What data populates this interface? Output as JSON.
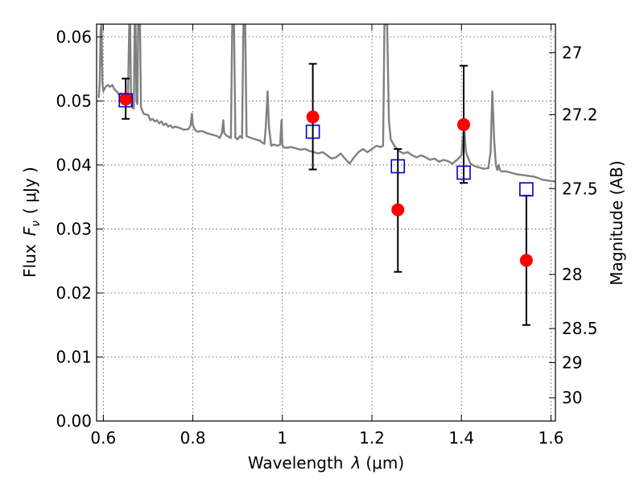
{
  "chart_data": {
    "type": "scatter",
    "title": "",
    "xlabel_prefix": "Wavelength",
    "xlabel_symbol": "λ",
    "xlabel_unit": "(μm)",
    "ylabel_prefix": "Flux",
    "ylabel_symbol": "F",
    "ylabel_subscript": "ν",
    "ylabel_unit": "( μJy )",
    "y2label": "Magnitude (AB)",
    "xlim": [
      0.585,
      1.61
    ],
    "ylim": [
      0.0,
      0.062
    ],
    "grid": true,
    "xticks": [
      {
        "value": 0.6,
        "label": "0.6"
      },
      {
        "value": 0.8,
        "label": "0.8"
      },
      {
        "value": 1.0,
        "label": "1"
      },
      {
        "value": 1.2,
        "label": "1.2"
      },
      {
        "value": 1.4,
        "label": "1.4"
      },
      {
        "value": 1.6,
        "label": "1.6"
      }
    ],
    "yticks": [
      {
        "value": 0.0,
        "label": "0.00"
      },
      {
        "value": 0.01,
        "label": "0.01"
      },
      {
        "value": 0.02,
        "label": "0.02"
      },
      {
        "value": 0.03,
        "label": "0.03"
      },
      {
        "value": 0.04,
        "label": "0.04"
      },
      {
        "value": 0.05,
        "label": "0.05"
      },
      {
        "value": 0.06,
        "label": "0.06"
      }
    ],
    "y2ticks": [
      {
        "mag": 27.0,
        "label": "27"
      },
      {
        "mag": 27.2,
        "label": "27.2"
      },
      {
        "mag": 27.5,
        "label": "27.5"
      },
      {
        "mag": 28.0,
        "label": "28"
      },
      {
        "mag": 28.5,
        "label": "28.5"
      },
      {
        "mag": 29.0,
        "label": "29"
      },
      {
        "mag": 30.0,
        "label": "30"
      }
    ],
    "series": [
      {
        "kind": "line",
        "color": "#808080",
        "points": [
          [
            0.59,
            0.0505
          ],
          [
            0.592,
            0.053
          ],
          [
            0.594,
            0.061
          ],
          [
            0.596,
            0.062
          ],
          [
            0.598,
            0.053
          ],
          [
            0.6,
            0.0515
          ],
          [
            0.605,
            0.0522
          ],
          [
            0.61,
            0.0525
          ],
          [
            0.615,
            0.0522
          ],
          [
            0.62,
            0.0525
          ],
          [
            0.625,
            0.0518
          ],
          [
            0.63,
            0.0515
          ],
          [
            0.635,
            0.051
          ],
          [
            0.64,
            0.0512
          ],
          [
            0.645,
            0.0505
          ],
          [
            0.65,
            0.0508
          ],
          [
            0.655,
            0.05
          ],
          [
            0.658,
            0.062
          ],
          [
            0.66,
            0.062
          ],
          [
            0.662,
            0.0495
          ],
          [
            0.665,
            0.049
          ],
          [
            0.668,
            0.0488
          ],
          [
            0.67,
            0.062
          ],
          [
            0.672,
            0.062
          ],
          [
            0.674,
            0.05
          ],
          [
            0.676,
            0.0495
          ],
          [
            0.678,
            0.062
          ],
          [
            0.682,
            0.062
          ],
          [
            0.684,
            0.049
          ],
          [
            0.69,
            0.048
          ],
          [
            0.7,
            0.0478
          ],
          [
            0.705,
            0.047
          ],
          [
            0.71,
            0.0472
          ],
          [
            0.715,
            0.0468
          ],
          [
            0.72,
            0.047
          ],
          [
            0.725,
            0.0465
          ],
          [
            0.73,
            0.0468
          ],
          [
            0.735,
            0.0462
          ],
          [
            0.74,
            0.0465
          ],
          [
            0.745,
            0.046
          ],
          [
            0.75,
            0.0462
          ],
          [
            0.755,
            0.0458
          ],
          [
            0.76,
            0.046
          ],
          [
            0.77,
            0.0458
          ],
          [
            0.78,
            0.0455
          ],
          [
            0.79,
            0.0456
          ],
          [
            0.795,
            0.0462
          ],
          [
            0.798,
            0.048
          ],
          [
            0.8,
            0.0462
          ],
          [
            0.805,
            0.0455
          ],
          [
            0.81,
            0.0452
          ],
          [
            0.82,
            0.0453
          ],
          [
            0.83,
            0.045
          ],
          [
            0.84,
            0.0448
          ],
          [
            0.85,
            0.0446
          ],
          [
            0.855,
            0.0445
          ],
          [
            0.86,
            0.0442
          ],
          [
            0.865,
            0.045
          ],
          [
            0.868,
            0.047
          ],
          [
            0.87,
            0.045
          ],
          [
            0.875,
            0.0446
          ],
          [
            0.88,
            0.0444
          ],
          [
            0.885,
            0.0442
          ],
          [
            0.888,
            0.062
          ],
          [
            0.892,
            0.062
          ],
          [
            0.895,
            0.0443
          ],
          [
            0.9,
            0.044
          ],
          [
            0.905,
            0.0445
          ],
          [
            0.91,
            0.0442
          ],
          [
            0.913,
            0.062
          ],
          [
            0.917,
            0.062
          ],
          [
            0.92,
            0.0445
          ],
          [
            0.93,
            0.0442
          ],
          [
            0.94,
            0.044
          ],
          [
            0.95,
            0.0438
          ],
          [
            0.955,
            0.0435
          ],
          [
            0.96,
            0.0433
          ],
          [
            0.963,
            0.046
          ],
          [
            0.967,
            0.0515
          ],
          [
            0.97,
            0.046
          ],
          [
            0.975,
            0.043
          ],
          [
            0.98,
            0.0432
          ],
          [
            0.99,
            0.043
          ],
          [
            0.995,
            0.0432
          ],
          [
            0.998,
            0.047
          ],
          [
            1.0,
            0.043
          ],
          [
            1.005,
            0.0427
          ],
          [
            1.01,
            0.0427
          ],
          [
            1.02,
            0.0428
          ],
          [
            1.03,
            0.0426
          ],
          [
            1.04,
            0.0424
          ],
          [
            1.05,
            0.0425
          ],
          [
            1.06,
            0.0422
          ],
          [
            1.07,
            0.042
          ],
          [
            1.08,
            0.0418
          ],
          [
            1.09,
            0.042
          ],
          [
            1.1,
            0.0415
          ],
          [
            1.11,
            0.041
          ],
          [
            1.12,
            0.0412
          ],
          [
            1.13,
            0.0418
          ],
          [
            1.14,
            0.041
          ],
          [
            1.15,
            0.0402
          ],
          [
            1.16,
            0.0412
          ],
          [
            1.17,
            0.042
          ],
          [
            1.18,
            0.0425
          ],
          [
            1.19,
            0.042
          ],
          [
            1.2,
            0.0425
          ],
          [
            1.21,
            0.043
          ],
          [
            1.22,
            0.0428
          ],
          [
            1.225,
            0.043
          ],
          [
            1.228,
            0.062
          ],
          [
            1.234,
            0.062
          ],
          [
            1.238,
            0.047
          ],
          [
            1.242,
            0.044
          ],
          [
            1.25,
            0.043
          ],
          [
            1.26,
            0.0422
          ],
          [
            1.27,
            0.0418
          ],
          [
            1.28,
            0.042
          ],
          [
            1.29,
            0.0415
          ],
          [
            1.3,
            0.0412
          ],
          [
            1.31,
            0.0415
          ],
          [
            1.32,
            0.0412
          ],
          [
            1.33,
            0.0408
          ],
          [
            1.34,
            0.041
          ],
          [
            1.35,
            0.0405
          ],
          [
            1.36,
            0.0408
          ],
          [
            1.37,
            0.0406
          ],
          [
            1.38,
            0.0402
          ],
          [
            1.39,
            0.0408
          ],
          [
            1.4,
            0.0415
          ],
          [
            1.403,
            0.044
          ],
          [
            1.406,
            0.046
          ],
          [
            1.41,
            0.042
          ],
          [
            1.42,
            0.0402
          ],
          [
            1.43,
            0.0398
          ],
          [
            1.44,
            0.0396
          ],
          [
            1.45,
            0.0394
          ],
          [
            1.46,
            0.0395
          ],
          [
            1.465,
            0.042
          ],
          [
            1.469,
            0.0515
          ],
          [
            1.473,
            0.044
          ],
          [
            1.477,
            0.04
          ],
          [
            1.48,
            0.0392
          ],
          [
            1.483,
            0.04
          ],
          [
            1.486,
            0.0392
          ],
          [
            1.49,
            0.039
          ],
          [
            1.5,
            0.039
          ],
          [
            1.51,
            0.0388
          ],
          [
            1.52,
            0.0386
          ],
          [
            1.53,
            0.0385
          ],
          [
            1.54,
            0.0384
          ],
          [
            1.55,
            0.0383
          ],
          [
            1.56,
            0.0382
          ],
          [
            1.57,
            0.038
          ],
          [
            1.58,
            0.0377
          ],
          [
            1.59,
            0.0376
          ],
          [
            1.6,
            0.0375
          ],
          [
            1.61,
            0.0374
          ]
        ]
      },
      {
        "kind": "errorbar",
        "color": "#000000",
        "points": [
          {
            "x": 0.65,
            "y": 0.0503,
            "ylo": 0.0472,
            "yhi": 0.0535
          },
          {
            "x": 1.068,
            "y": 0.0475,
            "ylo": 0.0393,
            "yhi": 0.0558
          },
          {
            "x": 1.258,
            "y": 0.033,
            "ylo": 0.0233,
            "yhi": 0.0425
          },
          {
            "x": 1.405,
            "y": 0.0463,
            "ylo": 0.0372,
            "yhi": 0.0555
          },
          {
            "x": 1.545,
            "y": 0.0251,
            "ylo": 0.015,
            "yhi": 0.0352
          }
        ]
      },
      {
        "kind": "markers",
        "marker": "circle",
        "color": "#ff0000",
        "points": [
          [
            0.65,
            0.0503
          ],
          [
            1.068,
            0.0475
          ],
          [
            1.258,
            0.033
          ],
          [
            1.405,
            0.0463
          ],
          [
            1.545,
            0.0251
          ]
        ]
      },
      {
        "kind": "markers",
        "marker": "open-square",
        "color": "#0000cc",
        "points": [
          [
            0.65,
            0.0501
          ],
          [
            1.068,
            0.0452
          ],
          [
            1.258,
            0.0398
          ],
          [
            1.405,
            0.0388
          ],
          [
            1.545,
            0.0362
          ]
        ]
      }
    ]
  }
}
